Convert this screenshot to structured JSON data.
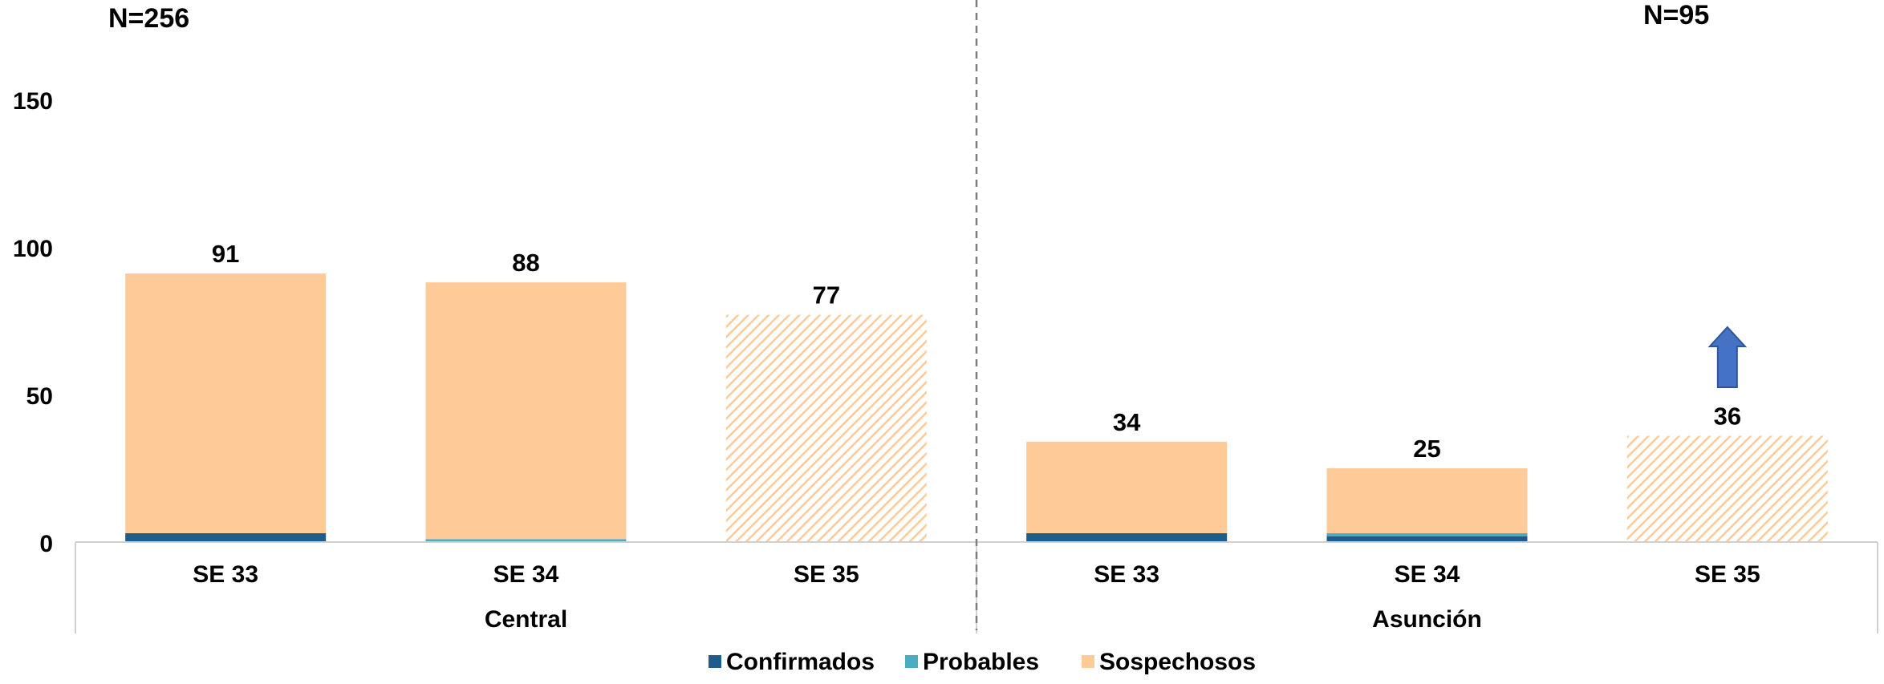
{
  "annotations": {
    "n_left": "N=256",
    "n_right": "N=95"
  },
  "chart_data": {
    "type": "bar",
    "stacked": true,
    "groups": [
      "Central",
      "Asunción"
    ],
    "categories": [
      "SE 33",
      "SE 34",
      "SE 35",
      "SE 33",
      "SE 34",
      "SE 35"
    ],
    "group_index": [
      0,
      0,
      0,
      1,
      1,
      1
    ],
    "series": [
      {
        "name": "Confirmados",
        "color": "#1F5C8B",
        "values": [
          3,
          0,
          0,
          3,
          2,
          0
        ]
      },
      {
        "name": "Probables",
        "color": "#4BACC6",
        "values": [
          0,
          1,
          0,
          0,
          1,
          0
        ]
      },
      {
        "name": "Sospechosos",
        "color": "#FECA98",
        "values": [
          88,
          87,
          77,
          31,
          22,
          36
        ]
      }
    ],
    "hatched": [
      false,
      false,
      true,
      false,
      false,
      true
    ],
    "totals": [
      91,
      88,
      77,
      34,
      25,
      36
    ],
    "yticks": [
      0,
      50,
      100,
      150
    ],
    "ylim": [
      0,
      150
    ],
    "grid": false,
    "legend_position": "bottom",
    "arrow_up_color": "#4472C4"
  }
}
